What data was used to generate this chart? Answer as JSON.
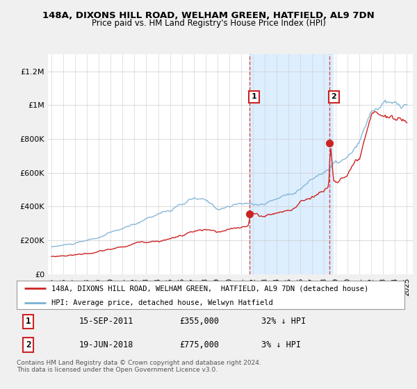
{
  "title_line1": "148A, DIXONS HILL ROAD, WELHAM GREEN, HATFIELD, AL9 7DN",
  "title_line2": "Price paid vs. HM Land Registry's House Price Index (HPI)",
  "fig_bg_color": "#f0f0f0",
  "plot_bg_color": "#ffffff",
  "hpi_color": "#7ab0d4",
  "price_color": "#cc2222",
  "shaded_region_color": "#ddeeff",
  "ylim": [
    0,
    1300000
  ],
  "yticks": [
    0,
    200000,
    400000,
    600000,
    800000,
    1000000,
    1200000
  ],
  "ytick_labels": [
    "£0",
    "£200K",
    "£400K",
    "£600K",
    "£800K",
    "£1M",
    "£1.2M"
  ],
  "legend_label_red": "148A, DIXONS HILL ROAD, WELHAM GREEN,  HATFIELD, AL9 7DN (detached house)",
  "legend_label_blue": "HPI: Average price, detached house, Welwyn Hatfield",
  "footnote": "Contains HM Land Registry data © Crown copyright and database right 2024.\nThis data is licensed under the Open Government Licence v3.0.",
  "sale1_date": "15-SEP-2011",
  "sale1_price": "£355,000",
  "sale1_note": "32% ↓ HPI",
  "sale2_date": "19-JUN-2018",
  "sale2_price": "£775,000",
  "sale2_note": "3% ↓ HPI",
  "sale1_x": 2011.71,
  "sale1_y": 355000,
  "sale2_x": 2018.46,
  "sale2_y": 775000,
  "shaded_x_start": 2011.71,
  "shaded_x_end": 2018.75,
  "xtick_years": [
    1995,
    1996,
    1997,
    1998,
    1999,
    2000,
    2001,
    2002,
    2003,
    2004,
    2005,
    2006,
    2007,
    2008,
    2009,
    2010,
    2011,
    2012,
    2013,
    2014,
    2015,
    2016,
    2017,
    2018,
    2019,
    2020,
    2021,
    2022,
    2023,
    2024,
    2025
  ]
}
